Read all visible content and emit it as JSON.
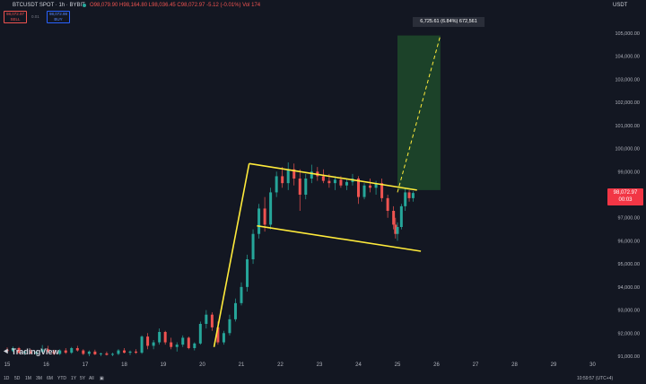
{
  "header": {
    "symbol": "BTCUSDT SPOT · 1h · BYBIT",
    "ohlc": "O98,079.90  H98,164.80  L98,036.45  C98,072.97  -5.12 (-0.01%)  Vol 174",
    "currency": "USDT"
  },
  "trade_buttons": {
    "sell_price": "98,072.97",
    "sell_label": "SELL",
    "spread": "0.01",
    "buy_price": "98,072.98",
    "buy_label": "BUY"
  },
  "price_tag": {
    "price": "98,072.97",
    "countdown": "00:03"
  },
  "measure_label": "6,725.61 (6.84%) 672,561",
  "brand": "TradingView",
  "colors": {
    "up": "#26a69a",
    "down": "#ef5350",
    "pattern": "#ffeb3b",
    "target_zone": "#1f4a2a"
  },
  "bottom_bar": {
    "ranges": [
      "1D",
      "5D",
      "1M",
      "3M",
      "6M",
      "YTD",
      "1Y",
      "5Y",
      "All"
    ],
    "time": "10:59:57 (UTC+4)"
  },
  "chart_data": {
    "type": "candlestick",
    "y_axis_labels": [
      "105,000.00",
      "104,000.00",
      "103,000.00",
      "102,000.00",
      "101,000.00",
      "100,000.00",
      "99,000.00",
      "98,000.00",
      "97,000.00",
      "96,000.00",
      "95,000.00",
      "94,000.00",
      "93,000.00",
      "92,000.00",
      "91,000.00"
    ],
    "x_axis_labels": [
      "15",
      "16",
      "17",
      "18",
      "19",
      "20",
      "21",
      "22",
      "23",
      "24",
      "25",
      "26",
      "27",
      "28",
      "29",
      "30"
    ],
    "ylim": [
      91000,
      105300
    ],
    "pattern_lines": [
      {
        "name": "flagpole",
        "from": [
          20.3,
          91400
        ],
        "to": [
          21.2,
          99350
        ]
      },
      {
        "name": "flag-top",
        "from": [
          21.2,
          99350
        ],
        "to": [
          25.5,
          98200
        ]
      },
      {
        "name": "flag-bottom",
        "from": [
          21.4,
          96650
        ],
        "to": [
          25.6,
          95550
        ]
      }
    ],
    "projection": {
      "from": [
        25.0,
        98100
      ],
      "to": [
        26.1,
        104900
      ]
    },
    "target_zone": {
      "x": [
        25.0,
        26.1
      ],
      "y": [
        98200,
        104900
      ]
    },
    "candles": [
      [
        15.0,
        91280,
        91380,
        91150,
        91220
      ],
      [
        15.15,
        91220,
        91420,
        91180,
        91350
      ],
      [
        15.3,
        91350,
        91400,
        91100,
        91150
      ],
      [
        15.45,
        91150,
        91250,
        91050,
        91200
      ],
      [
        15.6,
        91200,
        91300,
        91100,
        91120
      ],
      [
        15.75,
        91120,
        91220,
        91050,
        91180
      ],
      [
        15.9,
        91180,
        91480,
        91150,
        91300
      ],
      [
        16.05,
        91300,
        91450,
        91150,
        91200
      ],
      [
        16.2,
        91200,
        91280,
        91050,
        91100
      ],
      [
        16.35,
        91100,
        91300,
        91050,
        91250
      ],
      [
        16.5,
        91250,
        91350,
        91100,
        91150
      ],
      [
        16.65,
        91150,
        91400,
        91100,
        91350
      ],
      [
        16.8,
        91350,
        91450,
        91200,
        91250
      ],
      [
        16.95,
        91250,
        91300,
        91050,
        91100
      ],
      [
        17.1,
        91100,
        91250,
        91000,
        91200
      ],
      [
        17.25,
        91200,
        91280,
        91050,
        91080
      ],
      [
        17.4,
        91080,
        91150,
        91000,
        91120
      ],
      [
        17.55,
        91120,
        91200,
        91030,
        91060
      ],
      [
        17.7,
        91060,
        91150,
        91000,
        91100
      ],
      [
        17.85,
        91100,
        91300,
        91050,
        91250
      ],
      [
        18.0,
        91250,
        91350,
        91120,
        91150
      ],
      [
        18.15,
        91150,
        91250,
        91050,
        91200
      ],
      [
        18.3,
        91200,
        91300,
        91100,
        91150
      ],
      [
        18.45,
        91150,
        91900,
        91100,
        91850
      ],
      [
        18.6,
        91850,
        92000,
        91300,
        91450
      ],
      [
        18.75,
        91450,
        91700,
        91300,
        91600
      ],
      [
        18.9,
        91600,
        92200,
        91500,
        92050
      ],
      [
        19.05,
        92050,
        92100,
        91500,
        91600
      ],
      [
        19.2,
        91600,
        91800,
        91300,
        91400
      ],
      [
        19.35,
        91400,
        91600,
        91200,
        91500
      ],
      [
        19.5,
        91500,
        91900,
        91400,
        91800
      ],
      [
        19.65,
        91800,
        91850,
        91300,
        91350
      ],
      [
        19.8,
        91350,
        91600,
        91250,
        91550
      ],
      [
        19.95,
        91550,
        92500,
        91500,
        92400
      ],
      [
        20.1,
        92400,
        93000,
        92200,
        92800
      ],
      [
        20.25,
        92800,
        92900,
        92100,
        92250
      ],
      [
        20.4,
        92250,
        92500,
        91500,
        91600
      ],
      [
        20.55,
        91600,
        92100,
        91500,
        92000
      ],
      [
        20.7,
        92000,
        92800,
        91900,
        92600
      ],
      [
        20.85,
        92600,
        93500,
        92500,
        93300
      ],
      [
        21.0,
        93300,
        94200,
        93200,
        94000
      ],
      [
        21.15,
        94000,
        95400,
        93800,
        95200
      ],
      [
        21.3,
        95200,
        96500,
        95000,
        96300
      ],
      [
        21.45,
        96300,
        97600,
        96100,
        97400
      ],
      [
        21.6,
        97400,
        97900,
        96400,
        96700
      ],
      [
        21.75,
        96700,
        98300,
        96500,
        98100
      ],
      [
        21.9,
        98100,
        99000,
        97900,
        98800
      ],
      [
        22.05,
        98800,
        99200,
        98300,
        98500
      ],
      [
        22.2,
        98500,
        99400,
        98200,
        99100
      ],
      [
        22.35,
        99100,
        99350,
        98400,
        98700
      ],
      [
        22.5,
        98700,
        99100,
        97300,
        98000
      ],
      [
        22.65,
        98000,
        98900,
        97800,
        98700
      ],
      [
        22.8,
        98700,
        99300,
        98500,
        99000
      ],
      [
        22.95,
        99000,
        99200,
        98600,
        98800
      ],
      [
        23.1,
        98800,
        99100,
        98500,
        98600
      ],
      [
        23.25,
        98600,
        98900,
        98300,
        98500
      ],
      [
        23.4,
        98500,
        98800,
        98200,
        98650
      ],
      [
        23.55,
        98650,
        98800,
        98300,
        98400
      ],
      [
        23.7,
        98400,
        98700,
        98200,
        98550
      ],
      [
        23.85,
        98550,
        98900,
        98400,
        98700
      ],
      [
        24.0,
        98700,
        98800,
        97600,
        97900
      ],
      [
        24.15,
        97900,
        98500,
        97800,
        98400
      ],
      [
        24.3,
        98400,
        98700,
        98100,
        98300
      ],
      [
        24.45,
        98300,
        98600,
        98000,
        98500
      ],
      [
        24.6,
        98500,
        98700,
        97700,
        97850
      ],
      [
        24.75,
        97850,
        98000,
        97000,
        97300
      ],
      [
        24.9,
        97300,
        97500,
        96500,
        96700
      ],
      [
        24.95,
        96700,
        97000,
        96100,
        96300
      ],
      [
        25.0,
        96300,
        96800,
        96000,
        96600
      ],
      [
        25.1,
        96600,
        97600,
        96500,
        97500
      ],
      [
        25.2,
        97500,
        98300,
        97300,
        98100
      ],
      [
        25.3,
        98100,
        98200,
        97700,
        97850
      ],
      [
        25.4,
        97850,
        98150,
        97700,
        98073
      ]
    ]
  }
}
